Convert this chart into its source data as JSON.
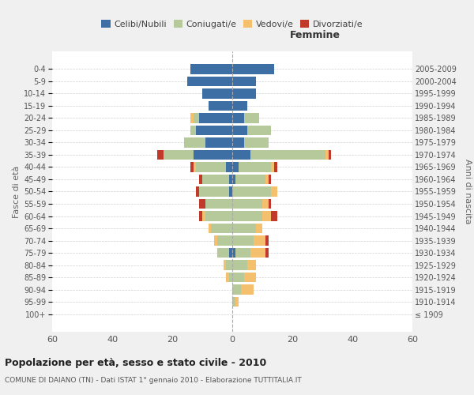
{
  "age_groups": [
    "100+",
    "95-99",
    "90-94",
    "85-89",
    "80-84",
    "75-79",
    "70-74",
    "65-69",
    "60-64",
    "55-59",
    "50-54",
    "45-49",
    "40-44",
    "35-39",
    "30-34",
    "25-29",
    "20-24",
    "15-19",
    "10-14",
    "5-9",
    "0-4"
  ],
  "birth_years": [
    "≤ 1909",
    "1910-1914",
    "1915-1919",
    "1920-1924",
    "1925-1929",
    "1930-1934",
    "1935-1939",
    "1940-1944",
    "1945-1949",
    "1950-1954",
    "1955-1959",
    "1960-1964",
    "1965-1969",
    "1970-1974",
    "1975-1979",
    "1980-1984",
    "1985-1989",
    "1990-1994",
    "1995-1999",
    "2000-2004",
    "2005-2009"
  ],
  "male": {
    "celibi": [
      0,
      0,
      0,
      0,
      0,
      1,
      0,
      0,
      0,
      0,
      1,
      1,
      2,
      13,
      9,
      12,
      11,
      8,
      10,
      15,
      14
    ],
    "coniugati": [
      0,
      0,
      0,
      1,
      2,
      4,
      5,
      7,
      9,
      9,
      10,
      9,
      10,
      10,
      7,
      2,
      2,
      0,
      0,
      0,
      0
    ],
    "vedovi": [
      0,
      0,
      0,
      1,
      1,
      0,
      1,
      1,
      1,
      0,
      0,
      0,
      1,
      0,
      0,
      0,
      1,
      0,
      0,
      0,
      0
    ],
    "divorziati": [
      0,
      0,
      0,
      0,
      0,
      0,
      0,
      0,
      1,
      2,
      1,
      1,
      1,
      2,
      0,
      0,
      0,
      0,
      0,
      0,
      0
    ]
  },
  "female": {
    "nubili": [
      0,
      0,
      0,
      0,
      0,
      1,
      0,
      0,
      0,
      0,
      0,
      1,
      2,
      6,
      4,
      5,
      4,
      5,
      8,
      8,
      14
    ],
    "coniugate": [
      0,
      1,
      3,
      4,
      5,
      5,
      7,
      8,
      10,
      10,
      13,
      10,
      11,
      25,
      8,
      8,
      5,
      0,
      0,
      0,
      0
    ],
    "vedove": [
      0,
      1,
      4,
      4,
      3,
      5,
      4,
      2,
      3,
      2,
      2,
      1,
      1,
      1,
      0,
      0,
      0,
      0,
      0,
      0,
      0
    ],
    "divorziate": [
      0,
      0,
      0,
      0,
      0,
      1,
      1,
      0,
      2,
      1,
      0,
      1,
      1,
      1,
      0,
      0,
      0,
      0,
      0,
      0,
      0
    ]
  },
  "colors": {
    "celibi": "#3d6fa5",
    "coniugati": "#b5c99a",
    "vedovi": "#f5c06e",
    "divorziati": "#c0392b"
  },
  "xlim": 60,
  "title": "Popolazione per età, sesso e stato civile - 2010",
  "subtitle": "COMUNE DI DAIANO (TN) - Dati ISTAT 1° gennaio 2010 - Elaborazione TUTTITALIA.IT",
  "legend_labels": [
    "Celibi/Nubili",
    "Coniugati/e",
    "Vedovi/e",
    "Divorziati/e"
  ],
  "femmine_label": "Femmine",
  "fasce_label": "Fasce di età",
  "anni_label": "Anni di nascita",
  "background_color": "#f0f0f0",
  "plot_background": "#ffffff"
}
